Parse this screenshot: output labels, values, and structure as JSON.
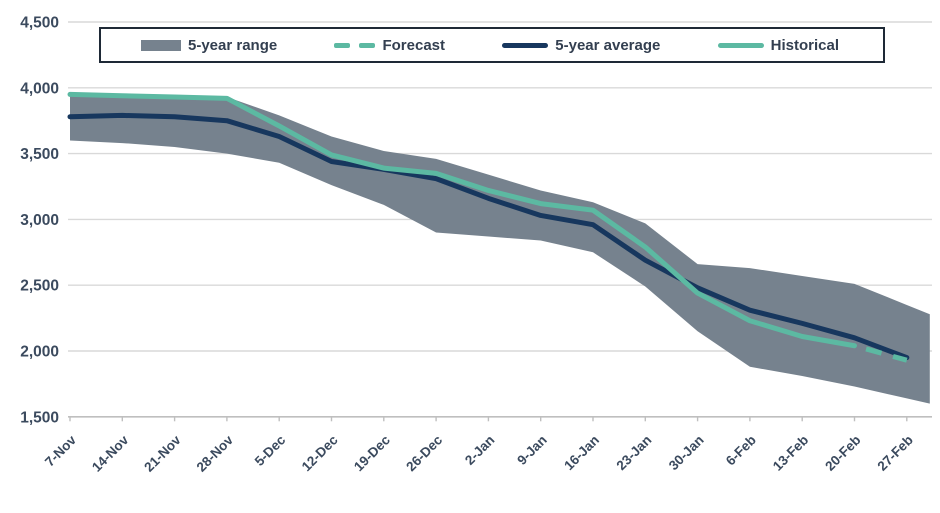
{
  "chart_data": {
    "type": "line",
    "title": "",
    "categories": [
      "7-Nov",
      "14-Nov",
      "21-Nov",
      "28-Nov",
      "5-Dec",
      "12-Dec",
      "19-Dec",
      "26-Dec",
      "2-Jan",
      "9-Jan",
      "16-Jan",
      "23-Jan",
      "30-Jan",
      "6-Feb",
      "13-Feb",
      "20-Feb",
      "27-Feb"
    ],
    "ylim": [
      1500,
      4500
    ],
    "y_ticks": [
      4500,
      4000,
      3500,
      3000,
      2500,
      2000,
      1500
    ],
    "y_tick_labels": [
      "4,500",
      "4,000",
      "3,500",
      "3,000",
      "2,500",
      "2,000",
      "1,500"
    ],
    "grid": "horizontal",
    "legend_position": "top",
    "series": [
      {
        "name": "5-year range",
        "type": "band",
        "color": "#76828e",
        "top": [
          3960,
          3950,
          3940,
          3930,
          3790,
          3630,
          3520,
          3460,
          3340,
          3220,
          3130,
          2970,
          2660,
          2630,
          2570,
          2510,
          2350
        ],
        "bottom": [
          3600,
          3580,
          3550,
          3500,
          3430,
          3260,
          3110,
          2900,
          2870,
          2840,
          2750,
          2490,
          2150,
          1880,
          1810,
          1730,
          1640
        ]
      },
      {
        "name": "Forecast",
        "type": "dashed-line",
        "color": "#5cb9a2",
        "start_index": 15,
        "values": [
          2040,
          1930
        ]
      },
      {
        "name": "5-year average",
        "type": "line",
        "color": "#17375e",
        "values": [
          3780,
          3790,
          3780,
          3750,
          3630,
          3440,
          3380,
          3310,
          3160,
          3030,
          2960,
          2690,
          2480,
          2310,
          2210,
          2100,
          1950
        ]
      },
      {
        "name": "Historical",
        "type": "line",
        "color": "#5cb9a2",
        "end_index": 15,
        "values": [
          3950,
          3940,
          3930,
          3920,
          3710,
          3490,
          3390,
          3350,
          3220,
          3120,
          3070,
          2790,
          2440,
          2230,
          2110,
          2040
        ]
      }
    ],
    "axis_colors": {
      "gridline": "#d9d9d9",
      "axis_line": "#bfbfbf",
      "tick_label": "#3b4a5e"
    }
  },
  "legend": {
    "border_color": "#1e2936",
    "items": [
      {
        "label": "5-year range"
      },
      {
        "label": "Forecast"
      },
      {
        "label": "5-year average"
      },
      {
        "label": "Historical"
      }
    ]
  }
}
